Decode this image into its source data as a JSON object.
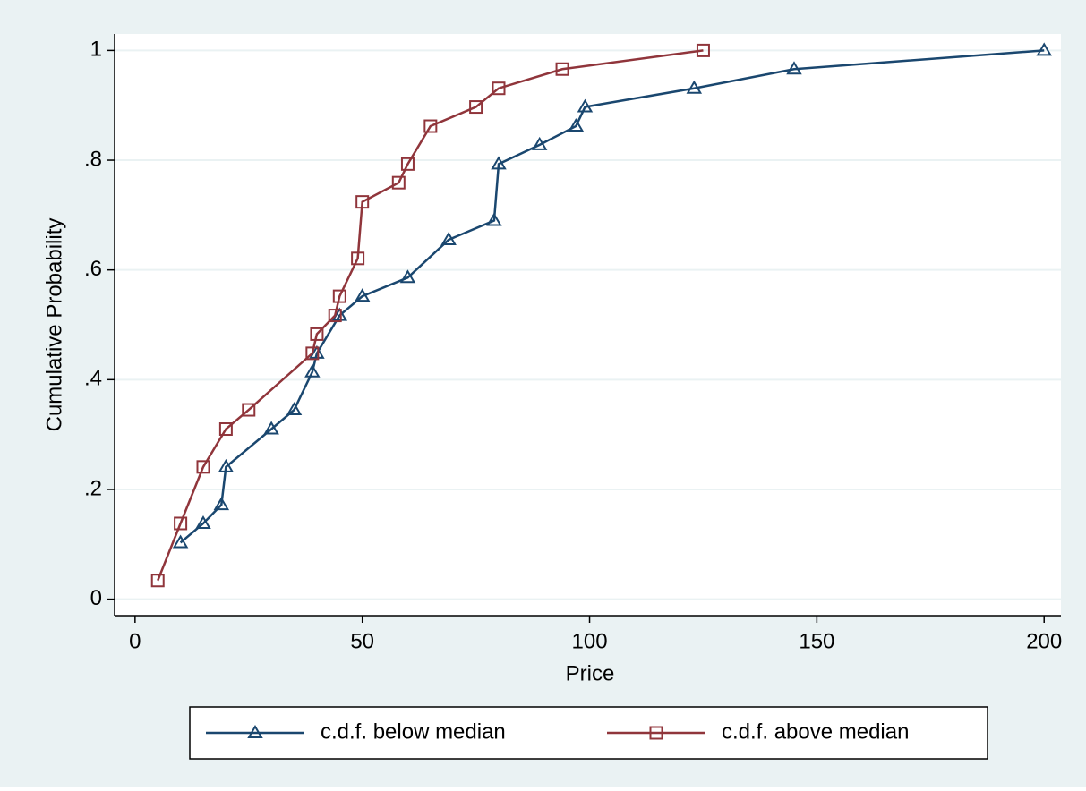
{
  "chart_data": {
    "type": "line",
    "xlabel": "Price",
    "ylabel": "Cumulative Probability",
    "xlim": [
      -4.5,
      203.7
    ],
    "ylim": [
      -0.03,
      1.03
    ],
    "xticks": [
      0,
      50,
      100,
      150,
      200
    ],
    "yticks": [
      0,
      {
        "value": 0.2,
        "label": ".2"
      },
      {
        "value": 0.4,
        "label": ".4"
      },
      {
        "value": 0.6,
        "label": ".6"
      },
      {
        "value": 0.8,
        "label": ".8"
      },
      1
    ],
    "grid": true,
    "legend": "bottom",
    "series": [
      {
        "name": "c.d.f. below median",
        "color": "#1a476f",
        "marker": "triangle",
        "x": [
          10,
          15,
          19,
          20,
          30,
          35,
          39,
          40,
          45,
          50,
          60,
          69,
          79,
          80,
          89,
          97,
          99,
          123,
          145,
          200
        ],
        "values": [
          0.103,
          0.138,
          0.172,
          0.241,
          0.31,
          0.345,
          0.414,
          0.448,
          0.517,
          0.552,
          0.586,
          0.655,
          0.69,
          0.793,
          0.828,
          0.862,
          0.897,
          0.931,
          0.966,
          1
        ]
      },
      {
        "name": "c.d.f. above median",
        "color": "#90353b",
        "marker": "square",
        "x": [
          5,
          10,
          15,
          20,
          25,
          39,
          40,
          44,
          45,
          49,
          50,
          58,
          60,
          65,
          75,
          80,
          94,
          125
        ],
        "values": [
          0.034,
          0.138,
          0.241,
          0.31,
          0.345,
          0.448,
          0.483,
          0.517,
          0.552,
          0.621,
          0.724,
          0.759,
          0.793,
          0.862,
          0.897,
          0.931,
          0.966,
          1
        ]
      }
    ]
  }
}
